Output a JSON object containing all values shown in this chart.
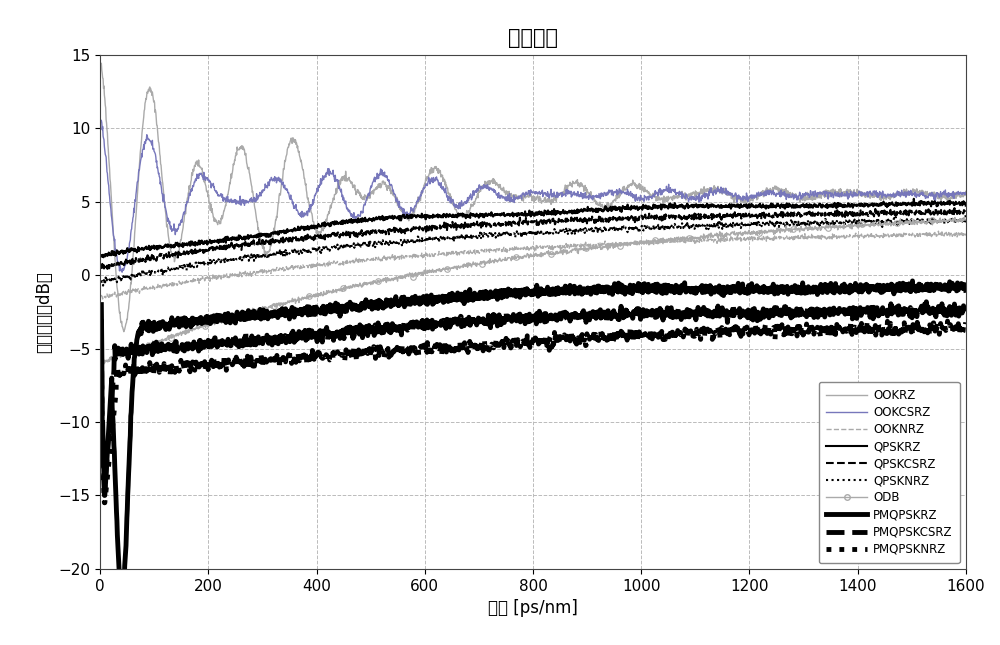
{
  "title": "样本曲线",
  "xlabel": "色散 [ps/nm]",
  "ylabel": "输出信号（dB）",
  "xlim": [
    0,
    1600
  ],
  "ylim": [
    -20,
    15
  ],
  "yticks": [
    -20,
    -15,
    -10,
    -5,
    0,
    5,
    10,
    15
  ],
  "xticks": [
    0,
    200,
    400,
    600,
    800,
    1000,
    1200,
    1400,
    1600
  ],
  "background": "#ffffff",
  "grid_color": "#bbbbbb",
  "series": [
    {
      "label": "OOKRZ",
      "color": "#aaaaaa",
      "lw": 1.0,
      "ls": "-",
      "marker": null
    },
    {
      "label": "OOKCSRZ",
      "color": "#7777bb",
      "lw": 1.0,
      "ls": "-",
      "marker": null
    },
    {
      "label": "OOKNRZ",
      "color": "#aaaaaa",
      "lw": 1.0,
      "ls": "--",
      "marker": null
    },
    {
      "label": "QPSKRZ",
      "color": "#000000",
      "lw": 1.5,
      "ls": "-",
      "marker": null
    },
    {
      "label": "QPSKCSRZ",
      "color": "#000000",
      "lw": 1.5,
      "ls": "--",
      "marker": null
    },
    {
      "label": "QPSKNRZ",
      "color": "#000000",
      "lw": 1.5,
      "ls": ":",
      "marker": null
    },
    {
      "label": "ODB",
      "color": "#aaaaaa",
      "lw": 1.0,
      "ls": "-",
      "marker": "o"
    },
    {
      "label": "PMQPSKRZ",
      "color": "#000000",
      "lw": 3.5,
      "ls": "-",
      "marker": null
    },
    {
      "label": "PMQPSKCSRZ",
      "color": "#000000",
      "lw": 3.5,
      "ls": "--",
      "marker": null
    },
    {
      "label": "PMQPSKNRZ",
      "color": "#000000",
      "lw": 3.5,
      "ls": ":",
      "marker": null
    }
  ]
}
